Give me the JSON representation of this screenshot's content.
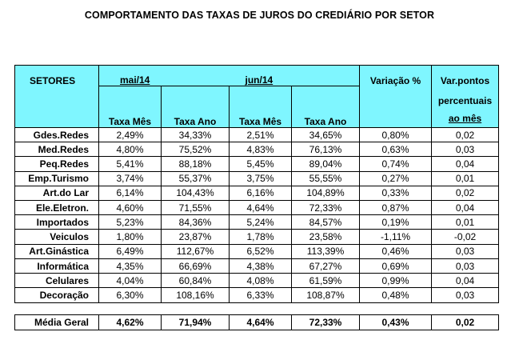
{
  "title": "COMPORTAMENTO DAS TAXAS DE JUROS DO CREDIÁRIO POR SETOR",
  "header": {
    "setores": "SETORES",
    "mai": "mai/14",
    "jun": "jun/14",
    "variacao": "Variação %",
    "var_pontos_1": "Var.pontos",
    "var_pontos_2": "percentuais",
    "var_pontos_3": "ao mês",
    "taxa_mes": "Taxa Mês",
    "taxa_ano": "Taxa Ano"
  },
  "rows": [
    {
      "setor": "Gdes.Redes",
      "mai_mes": "2,49%",
      "mai_ano": "34,33%",
      "jun_mes": "2,51%",
      "jun_ano": "34,65%",
      "var": "0,80%",
      "pp": "0,02"
    },
    {
      "setor": "Med.Redes",
      "mai_mes": "4,80%",
      "mai_ano": "75,52%",
      "jun_mes": "4,83%",
      "jun_ano": "76,13%",
      "var": "0,63%",
      "pp": "0,03"
    },
    {
      "setor": "Peq.Redes",
      "mai_mes": "5,41%",
      "mai_ano": "88,18%",
      "jun_mes": "5,45%",
      "jun_ano": "89,04%",
      "var": "0,74%",
      "pp": "0,04"
    },
    {
      "setor": "Emp.Turismo",
      "mai_mes": "3,74%",
      "mai_ano": "55,37%",
      "jun_mes": "3,75%",
      "jun_ano": "55,55%",
      "var": "0,27%",
      "pp": "0,01"
    },
    {
      "setor": "Art.do Lar",
      "mai_mes": "6,14%",
      "mai_ano": "104,43%",
      "jun_mes": "6,16%",
      "jun_ano": "104,89%",
      "var": "0,33%",
      "pp": "0,02"
    },
    {
      "setor": "Ele.Eletron.",
      "mai_mes": "4,60%",
      "mai_ano": "71,55%",
      "jun_mes": "4,64%",
      "jun_ano": "72,33%",
      "var": "0,87%",
      "pp": "0,04"
    },
    {
      "setor": "Importados",
      "mai_mes": "5,23%",
      "mai_ano": "84,36%",
      "jun_mes": "5,24%",
      "jun_ano": "84,57%",
      "var": "0,19%",
      "pp": "0,01"
    },
    {
      "setor": "Veiculos",
      "mai_mes": "1,80%",
      "mai_ano": "23,87%",
      "jun_mes": "1,78%",
      "jun_ano": "23,58%",
      "var": "-1,11%",
      "pp": "-0,02"
    },
    {
      "setor": "Art.Ginástica",
      "mai_mes": "6,49%",
      "mai_ano": "112,67%",
      "jun_mes": "6,52%",
      "jun_ano": "113,39%",
      "var": "0,46%",
      "pp": "0,03"
    },
    {
      "setor": "Informática",
      "mai_mes": "4,35%",
      "mai_ano": "66,69%",
      "jun_mes": "4,38%",
      "jun_ano": "67,27%",
      "var": "0,69%",
      "pp": "0,03"
    },
    {
      "setor": "Celulares",
      "mai_mes": "4,04%",
      "mai_ano": "60,84%",
      "jun_mes": "4,08%",
      "jun_ano": "61,59%",
      "var": "0,99%",
      "pp": "0,04"
    },
    {
      "setor": "Decoração",
      "mai_mes": "6,30%",
      "mai_ano": "108,16%",
      "jun_mes": "6,33%",
      "jun_ano": "108,87%",
      "var": "0,48%",
      "pp": "0,03"
    }
  ],
  "total": {
    "setor": "Média Geral",
    "mai_mes": "4,62%",
    "mai_ano": "71,94%",
    "jun_mes": "4,64%",
    "jun_ano": "72,33%",
    "var": "0,43%",
    "pp": "0,02"
  },
  "colors": {
    "header_bg": "#7ff6ff"
  }
}
